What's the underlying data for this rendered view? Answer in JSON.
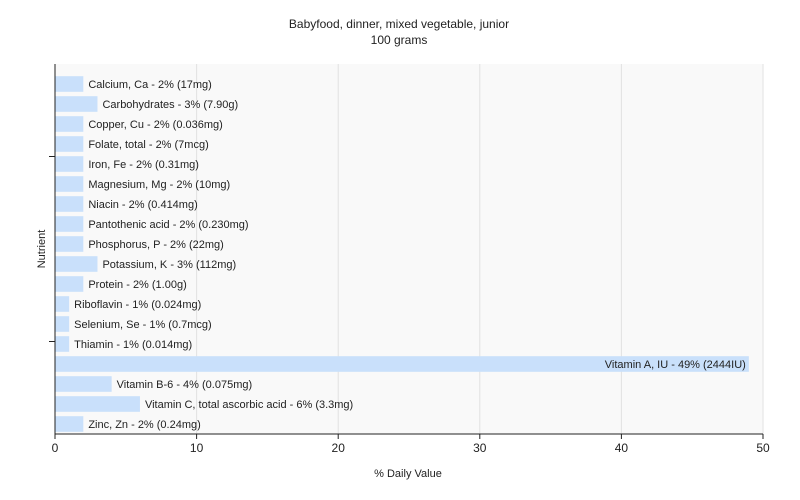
{
  "chart_data": {
    "type": "bar",
    "orientation": "horizontal",
    "title": "Babyfood, dinner, mixed vegetable, junior",
    "subtitle": "100 grams",
    "xlabel": "% Daily Value",
    "ylabel": "Nutrient",
    "xlim": [
      0,
      50
    ],
    "xticks": [
      0,
      10,
      20,
      30,
      40,
      50
    ],
    "grid": true,
    "bar_color": "#c9e0fb",
    "categories": [
      "Calcium, Ca - 2% (17mg)",
      "Carbohydrates - 3% (7.90g)",
      "Copper, Cu - 2% (0.036mg)",
      "Folate, total - 2% (7mcg)",
      "Iron, Fe - 2% (0.31mg)",
      "Magnesium, Mg - 2% (10mg)",
      "Niacin - 2% (0.414mg)",
      "Pantothenic acid - 2% (0.230mg)",
      "Phosphorus, P - 2% (22mg)",
      "Potassium, K - 3% (112mg)",
      "Protein - 2% (1.00g)",
      "Riboflavin - 1% (0.024mg)",
      "Selenium, Se - 1% (0.7mcg)",
      "Thiamin - 1% (0.014mg)",
      "Vitamin A, IU - 49% (2444IU)",
      "Vitamin B-6 - 4% (0.075mg)",
      "Vitamin C, total ascorbic acid - 6% (3.3mg)",
      "Zinc, Zn - 2% (0.24mg)"
    ],
    "values": [
      2,
      3,
      2,
      2,
      2,
      2,
      2,
      2,
      2,
      3,
      2,
      1,
      1,
      1,
      49,
      4,
      6,
      2
    ]
  }
}
